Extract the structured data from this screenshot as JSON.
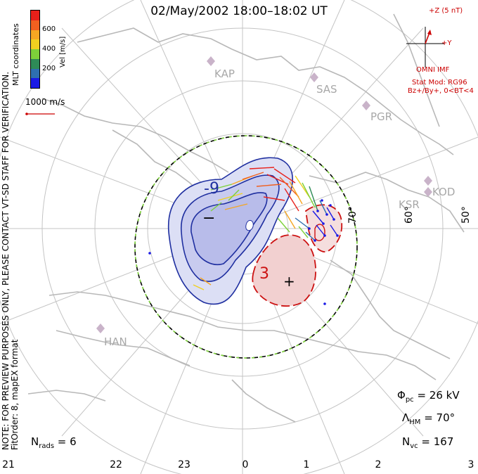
{
  "title": "02/May/2002 18:00–18:02 UT",
  "side_note_line1": "NOTE: FOR PREVIEW PURPOSES ONLY, PLEASE CONTACT VT-SD STAFF FOR VERIFICATION.",
  "side_note_line2": "FitOrder: 8, mapEX format",
  "colorbar": {
    "title": "MLT coordinates",
    "unit_label": "Vel [m/s]",
    "ticks": [
      "600",
      "400",
      "200"
    ],
    "colors": [
      "#e8201a",
      "#f06020",
      "#f5a623",
      "#f0d020",
      "#7dd13a",
      "#2e8b57",
      "#2e6fb0",
      "#1a1ae6"
    ]
  },
  "vector_scale_label": "1000 m/s",
  "imf": {
    "z_label": "+Z (5 nT)",
    "y_label": "+Y",
    "source": "OMNI IMF",
    "model": "Stat Mod: RG96",
    "bin": "Bz+/By+, 0<BT<4",
    "color": "#cc0000"
  },
  "stations": [
    "KAP",
    "SAS",
    "PGR",
    "KOD",
    "KSR",
    "HAN"
  ],
  "lat_labels": [
    "70°",
    "60°",
    "50°"
  ],
  "contour_labels": [
    "-9",
    "3",
    "−",
    "+"
  ],
  "stats": {
    "phi_pc": "26 kV",
    "lambda_hm": "70°",
    "n_vc": "167",
    "n_rads": "6"
  },
  "mlt_hours": [
    "21",
    "22",
    "23",
    "0",
    "1",
    "2",
    "3"
  ],
  "colors": {
    "negative_contour": "#1f2fa0",
    "positive_contour": "#cc1111",
    "negative_fill": "#c8cbef",
    "positive_fill": "#f2d0d0",
    "grid": "#bcbcbc",
    "coast": "#b8b8b8"
  }
}
